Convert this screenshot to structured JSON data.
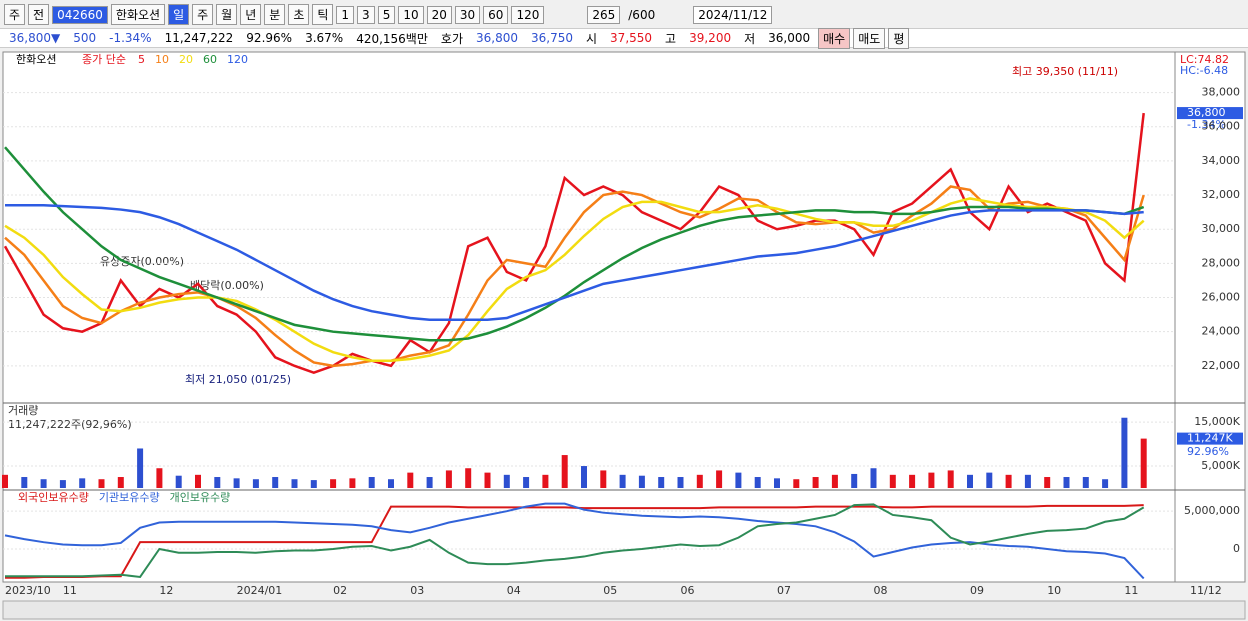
{
  "toolbar": {
    "items": [
      "주",
      "전",
      "042660",
      "한화오션",
      "일",
      "주",
      "월",
      "년",
      "분",
      "초",
      "틱",
      "1",
      "3",
      "5",
      "10",
      "20",
      "30",
      "60",
      "120"
    ],
    "count": "265",
    "count_max": "/600",
    "date": "2024/11/12"
  },
  "quote_bar": {
    "items": [
      "36,800▼",
      "500",
      "-1.34%",
      "11,247,222",
      "92.96%",
      "3.67%",
      "420,156백만",
      "호가",
      "36,800",
      "36,750",
      "시",
      "37,550",
      "고",
      "39,200",
      "저",
      "36,000"
    ],
    "buttons": [
      "매수",
      "매도",
      "평"
    ]
  },
  "chart_data": [
    {
      "type": "line",
      "stock_name": "한화오션",
      "legend_prefix": "종가 단순",
      "ylim": [
        20000,
        40200
      ],
      "yticks": [
        {
          "value": 22000,
          "label": "22,000"
        },
        {
          "value": 24000,
          "label": "24,000"
        },
        {
          "value": 26000,
          "label": "26,000"
        },
        {
          "value": 28000,
          "label": "28,000"
        },
        {
          "value": 30000,
          "label": "30,000"
        },
        {
          "value": 32000,
          "label": "32,000"
        },
        {
          "value": 34000,
          "label": "34,000"
        },
        {
          "value": 36000,
          "label": "36,000"
        },
        {
          "value": 38000,
          "label": "38,000"
        }
      ],
      "grid": true,
      "current_price": {
        "value": 36800,
        "label": "36,800"
      },
      "change_label": "-1.34%",
      "lc_label": "LC:74.82",
      "hc_label": "HC:-6.48",
      "annotations": [
        "최고 39,350 (11/11)",
        "최저 21,050 (01/25)",
        "유상증자(0.00%)",
        "배당락(0.00%)"
      ],
      "series": [
        {
          "name": "5",
          "color": "#e5131d",
          "values": [
            29000,
            27000,
            25000,
            24200,
            24000,
            24500,
            27000,
            25500,
            26500,
            26000,
            26800,
            25500,
            25000,
            24000,
            22500,
            22000,
            21600,
            22000,
            22700,
            22300,
            22000,
            23500,
            22800,
            24500,
            29000,
            29500,
            27500,
            27000,
            29000,
            33000,
            32000,
            32500,
            32000,
            31000,
            30500,
            30000,
            31000,
            32500,
            32000,
            30500,
            30000,
            30200,
            30500,
            30500,
            30000,
            28500,
            31000,
            31500,
            32500,
            33500,
            31000,
            30000,
            32500,
            31000,
            31500,
            31000,
            30500,
            28000,
            27000,
            36800
          ]
        },
        {
          "name": "10",
          "color": "#f57f17",
          "values": [
            29500,
            28500,
            27000,
            25500,
            24800,
            24500,
            25200,
            25700,
            26000,
            26200,
            26300,
            26000,
            25500,
            24800,
            23800,
            22900,
            22200,
            22000,
            22100,
            22300,
            22300,
            22600,
            22800,
            23200,
            25000,
            27000,
            28200,
            28000,
            27800,
            29500,
            31000,
            32000,
            32200,
            32000,
            31500,
            31000,
            30700,
            31200,
            31800,
            31700,
            31000,
            30400,
            30300,
            30400,
            30400,
            29800,
            30000,
            30800,
            31500,
            32500,
            32300,
            31200,
            31500,
            31600,
            31300,
            31200,
            30800,
            29500,
            28200,
            32000
          ]
        },
        {
          "name": "20",
          "color": "#f2dc10",
          "values": [
            30200,
            29500,
            28500,
            27200,
            26200,
            25300,
            25200,
            25400,
            25700,
            25900,
            26000,
            26000,
            25800,
            25300,
            24700,
            24000,
            23300,
            22800,
            22500,
            22300,
            22300,
            22400,
            22600,
            22900,
            23800,
            25200,
            26500,
            27200,
            27600,
            28500,
            29600,
            30600,
            31300,
            31600,
            31600,
            31300,
            31000,
            31000,
            31200,
            31400,
            31200,
            30900,
            30600,
            30400,
            30400,
            30200,
            30200,
            30500,
            31000,
            31500,
            31800,
            31600,
            31400,
            31300,
            31300,
            31200,
            31000,
            30500,
            29500,
            30500
          ]
        },
        {
          "name": "60",
          "color": "#1e8f3a",
          "values": [
            34800,
            33500,
            32200,
            31000,
            30000,
            29000,
            28200,
            27700,
            27200,
            26800,
            26400,
            26000,
            25600,
            25200,
            24800,
            24400,
            24200,
            24000,
            23900,
            23800,
            23700,
            23600,
            23500,
            23500,
            23600,
            23900,
            24300,
            24800,
            25400,
            26100,
            26900,
            27600,
            28300,
            28900,
            29400,
            29800,
            30200,
            30500,
            30700,
            30800,
            30900,
            31000,
            31100,
            31100,
            31000,
            31000,
            30900,
            30900,
            31000,
            31200,
            31300,
            31300,
            31300,
            31200,
            31200,
            31100,
            31100,
            31000,
            30900,
            31300
          ]
        },
        {
          "name": "120",
          "color": "#2d5be3",
          "values": [
            31400,
            31400,
            31400,
            31350,
            31300,
            31250,
            31150,
            31000,
            30700,
            30300,
            29800,
            29300,
            28800,
            28200,
            27600,
            27000,
            26400,
            25900,
            25500,
            25200,
            25000,
            24800,
            24700,
            24700,
            24700,
            24700,
            24800,
            25200,
            25600,
            26000,
            26400,
            26800,
            27000,
            27200,
            27400,
            27600,
            27800,
            28000,
            28200,
            28400,
            28500,
            28600,
            28800,
            29000,
            29300,
            29600,
            29900,
            30200,
            30500,
            30800,
            31000,
            31100,
            31100,
            31100,
            31100,
            31100,
            31100,
            31000,
            30900,
            31000
          ]
        }
      ]
    },
    {
      "type": "bar",
      "title": "거래량",
      "subtitle": "11,247,222주(92,96%)",
      "up_color": "#e5131d",
      "down_color": "#2d4fd0",
      "ylim": [
        0,
        18900
      ],
      "yticks": [
        {
          "value": 5000,
          "label": "5,000K"
        },
        {
          "value": 15000,
          "label": "15,000K"
        }
      ],
      "last_value_label": "11,247K",
      "ratio_label": "92.96%",
      "values": [
        3000,
        2500,
        2000,
        1800,
        2200,
        2000,
        2500,
        9000,
        4500,
        2800,
        3000,
        2500,
        2200,
        2000,
        2500,
        2000,
        1800,
        2000,
        2200,
        2500,
        2000,
        3500,
        2500,
        4000,
        4500,
        3500,
        3000,
        2500,
        3000,
        7500,
        5000,
        4000,
        3000,
        2800,
        2500,
        2500,
        3000,
        4000,
        3500,
        2500,
        2200,
        2000,
        2500,
        3000,
        3200,
        4500,
        3000,
        3000,
        3500,
        4000,
        3000,
        3500,
        3000,
        3000,
        2500,
        2500,
        2500,
        2000,
        16000,
        11247
      ]
    },
    {
      "type": "line",
      "ylim": [
        -4100000,
        7800000
      ],
      "yticks": [
        0,
        {
          "value": 5000000,
          "label": "5,000,000"
        }
      ],
      "categories": [
        "2023/10",
        null,
        null,
        "11",
        null,
        null,
        null,
        null,
        "12",
        null,
        null,
        null,
        "2024/01",
        null,
        null,
        null,
        null,
        "02",
        null,
        null,
        null,
        "03",
        null,
        null,
        null,
        null,
        "04",
        null,
        null,
        null,
        null,
        "05",
        null,
        null,
        null,
        "06",
        null,
        null,
        null,
        null,
        "07",
        null,
        null,
        null,
        null,
        "08",
        null,
        null,
        null,
        null,
        "09",
        null,
        null,
        null,
        "10",
        null,
        null,
        null,
        "11",
        null
      ],
      "x_end_label": "11/12",
      "series": [
        {
          "name": "외국인보유수량",
          "color": "#d81818",
          "values": [
            -3800000,
            -3800000,
            -3700000,
            -3700000,
            -3700000,
            -3600000,
            -3600000,
            900000,
            900000,
            900000,
            900000,
            900000,
            900000,
            900000,
            900000,
            900000,
            900000,
            900000,
            900000,
            900000,
            5600000,
            5600000,
            5600000,
            5600000,
            5500000,
            5500000,
            5500000,
            5500000,
            5500000,
            5500000,
            5400000,
            5400000,
            5400000,
            5400000,
            5400000,
            5400000,
            5400000,
            5500000,
            5500000,
            5500000,
            5500000,
            5500000,
            5600000,
            5600000,
            5600000,
            5600000,
            5500000,
            5500000,
            5600000,
            5600000,
            5600000,
            5600000,
            5600000,
            5600000,
            5700000,
            5700000,
            5700000,
            5700000,
            5700000,
            5800000
          ]
        },
        {
          "name": "기관보유수량",
          "color": "#3163d9",
          "values": [
            1800000,
            1300000,
            900000,
            600000,
            500000,
            500000,
            800000,
            2800000,
            3500000,
            3600000,
            3600000,
            3600000,
            3600000,
            3600000,
            3600000,
            3500000,
            3400000,
            3300000,
            3200000,
            3000000,
            2500000,
            2200000,
            2800000,
            3500000,
            4000000,
            4500000,
            5000000,
            5600000,
            6000000,
            6000000,
            5200000,
            4800000,
            4600000,
            4400000,
            4300000,
            4200000,
            4300000,
            4200000,
            4000000,
            3700000,
            3500000,
            3300000,
            3000000,
            2200000,
            1000000,
            -1000000,
            -400000,
            200000,
            600000,
            800000,
            900000,
            600000,
            400000,
            300000,
            0,
            -300000,
            -400000,
            -600000,
            -1200000,
            -3900000
          ]
        },
        {
          "name": "개인보유수량",
          "color": "#2e8b57",
          "values": [
            -3600000,
            -3600000,
            -3600000,
            -3600000,
            -3600000,
            -3500000,
            -3400000,
            -3700000,
            0,
            -500000,
            -500000,
            -400000,
            -400000,
            -500000,
            -300000,
            -200000,
            -200000,
            0,
            300000,
            400000,
            -200000,
            300000,
            1200000,
            -500000,
            -1800000,
            -2000000,
            -2000000,
            -1800000,
            -1500000,
            -1300000,
            -1000000,
            -500000,
            -200000,
            0,
            300000,
            600000,
            400000,
            500000,
            1500000,
            3000000,
            3300000,
            3500000,
            4000000,
            4500000,
            5800000,
            5900000,
            4500000,
            4200000,
            3800000,
            1500000,
            600000,
            1000000,
            1500000,
            2000000,
            2400000,
            2500000,
            2700000,
            3600000,
            4000000,
            5500000
          ]
        }
      ]
    }
  ]
}
